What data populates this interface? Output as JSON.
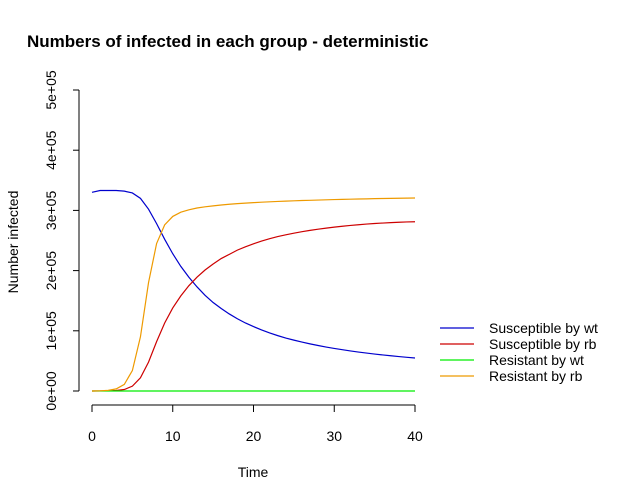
{
  "chart_data": {
    "type": "line",
    "title": "Numbers of infected in each group - deterministic",
    "xlabel": "Time",
    "ylabel": "Number infected",
    "xlim": [
      0,
      40
    ],
    "ylim": [
      0,
      500000
    ],
    "xticks": [
      0,
      10,
      20,
      30,
      40
    ],
    "xtick_labels": [
      "0",
      "10",
      "20",
      "30",
      "40"
    ],
    "yticks": [
      0,
      100000,
      200000,
      300000,
      400000,
      500000
    ],
    "ytick_labels": [
      "0e+00",
      "1e+05",
      "2e+05",
      "3e+05",
      "4e+05",
      "5e+05"
    ],
    "grid": false,
    "legend_position": "right",
    "x": [
      0,
      1,
      2,
      3,
      4,
      5,
      6,
      7,
      8,
      9,
      10,
      11,
      12,
      13,
      14,
      15,
      16,
      17,
      18,
      19,
      20,
      21,
      22,
      23,
      24,
      25,
      26,
      27,
      28,
      29,
      30,
      31,
      32,
      33,
      34,
      35,
      36,
      37,
      38,
      39,
      40
    ],
    "series": [
      {
        "name": "Susceptible by wt",
        "color": "#0000cd",
        "values": [
          330000,
          333000,
          333000,
          333000,
          332000,
          329000,
          320000,
          302000,
          278000,
          252000,
          228000,
          207000,
          189000,
          173000,
          159000,
          147000,
          137000,
          128000,
          120000,
          113000,
          107000,
          101500,
          96500,
          92000,
          88000,
          84500,
          81300,
          78300,
          75600,
          73000,
          70700,
          68600,
          66600,
          64700,
          63000,
          61400,
          59900,
          58500,
          57200,
          56000,
          54800
        ]
      },
      {
        "name": "Susceptible by rb",
        "color": "#cd0000",
        "values": [
          0,
          100,
          300,
          800,
          2500,
          8000,
          22000,
          48000,
          82000,
          113000,
          138000,
          158000,
          175000,
          189000,
          201000,
          211000,
          220000,
          227000,
          234000,
          239500,
          244500,
          249000,
          253000,
          256500,
          259500,
          262200,
          264600,
          266800,
          268800,
          270600,
          272200,
          273700,
          275000,
          276200,
          277300,
          278200,
          279000,
          279700,
          280300,
          280800,
          281200
        ]
      },
      {
        "name": "Resistant by wt",
        "color": "#00ee00",
        "values": [
          0,
          0,
          0,
          0,
          0,
          0,
          0,
          0,
          0,
          0,
          0,
          0,
          0,
          0,
          0,
          0,
          0,
          0,
          0,
          0,
          0,
          0,
          0,
          0,
          0,
          0,
          0,
          0,
          0,
          0,
          0,
          0,
          0,
          0,
          0,
          0,
          0,
          0,
          0,
          0,
          0
        ]
      },
      {
        "name": "Resistant by rb",
        "color": "#ee9a00",
        "values": [
          0,
          300,
          1000,
          3500,
          11000,
          34000,
          90000,
          180000,
          245000,
          276000,
          290000,
          297000,
          301000,
          304000,
          306000,
          307500,
          309000,
          310200,
          311200,
          312100,
          312900,
          313600,
          314300,
          314900,
          315400,
          315900,
          316400,
          316800,
          317200,
          317600,
          318000,
          318300,
          318600,
          318900,
          319200,
          319500,
          319800,
          320000,
          320200,
          320400,
          320600
        ]
      }
    ]
  }
}
